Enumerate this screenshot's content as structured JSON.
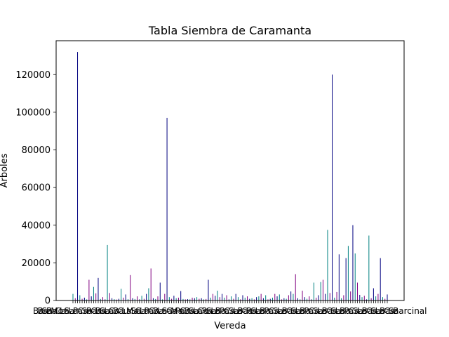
{
  "chart_data": {
    "type": "bar",
    "title": "Tabla Siembra de Caramanta",
    "xlabel": "Vereda",
    "ylabel": "Arboles",
    "ylim": [
      0,
      138000
    ],
    "yticks": [
      0,
      20000,
      40000,
      60000,
      80000,
      100000,
      120000
    ],
    "ytick_labels": [
      "0",
      "20000",
      "40000",
      "60000",
      "80000",
      "100000",
      "120000"
    ],
    "grid": false,
    "legend": "none",
    "colors": [
      "#008080",
      "#800080",
      "#000080"
    ],
    "axis_color": "#000000",
    "xtick_labels_visible": [
      "Ba",
      "Ba",
      "Sa",
      "Ba",
      "Mo",
      "Ca",
      "La",
      "Sa",
      "La",
      "Pa",
      "Ca",
      "Sa",
      "Ra",
      "Ca",
      "Ba",
      "Sa",
      "La",
      "Ca",
      "Ba",
      "Cu",
      "La",
      "Ma",
      "Sa",
      "Ca",
      "La",
      "Pa",
      "Ca",
      "Ba",
      "La",
      "Sa",
      "Ca",
      "Ma",
      "Pa",
      "Ca",
      "Ba",
      "Sa",
      "La",
      "Ca",
      "Ra",
      "Sa",
      "La",
      "Ba",
      "Pa",
      "Ca",
      "Sa",
      "La",
      "Ba",
      "Ca",
      "Ra",
      "Sa",
      "La",
      "Ba",
      "Pa",
      "Ca",
      "Sa",
      "La",
      "Ba",
      "Ca",
      "Sa",
      "La",
      "Ba",
      "Pa",
      "Ca",
      "Sa",
      "La",
      "Ba",
      "Ca",
      "Sa",
      "La",
      "Ba",
      "Pa",
      "Ca",
      "Sa",
      "La",
      "Ba",
      "Ca",
      "Sa",
      "La",
      "Ba",
      "Ca",
      "Sa",
      "Barcinal"
    ],
    "values": [
      3500,
      1200,
      132000,
      2800,
      900,
      1500,
      600,
      11000,
      2200,
      7200,
      3800,
      12000,
      800,
      1800,
      600,
      29500,
      4000,
      1200,
      700,
      500,
      900,
      6200,
      1500,
      3200,
      700,
      13500,
      1200,
      800,
      2200,
      600,
      2500,
      900,
      3500,
      6500,
      17000,
      1200,
      800,
      2200,
      9500,
      600,
      3500,
      97000,
      1800,
      900,
      2500,
      1200,
      1500,
      5000,
      800,
      600,
      700,
      600,
      1500,
      1200,
      1800,
      900,
      1200,
      600,
      800,
      11000,
      1500,
      3500,
      2500,
      5200,
      1800,
      3500,
      1500,
      2800,
      600,
      2200,
      900,
      3500,
      1800,
      600,
      2800,
      1500,
      2200,
      900,
      1200,
      600,
      1800,
      2200,
      3500,
      1200,
      2800,
      600,
      900,
      1500,
      3500,
      2200,
      3200,
      600,
      1200,
      900,
      2800,
      4800,
      3500,
      14000,
      1200,
      600,
      5200,
      1800,
      900,
      2200,
      600,
      9500,
      1500,
      2800,
      9800,
      11000,
      3500,
      37500,
      4000,
      120000,
      1500,
      4500,
      24500,
      1200,
      2800,
      22500,
      29000,
      4800,
      40000,
      25000,
      9500,
      3000,
      1800,
      2500,
      600,
      34500,
      1200,
      6500,
      2200,
      3500,
      22500,
      1800,
      900,
      3200
    ]
  }
}
